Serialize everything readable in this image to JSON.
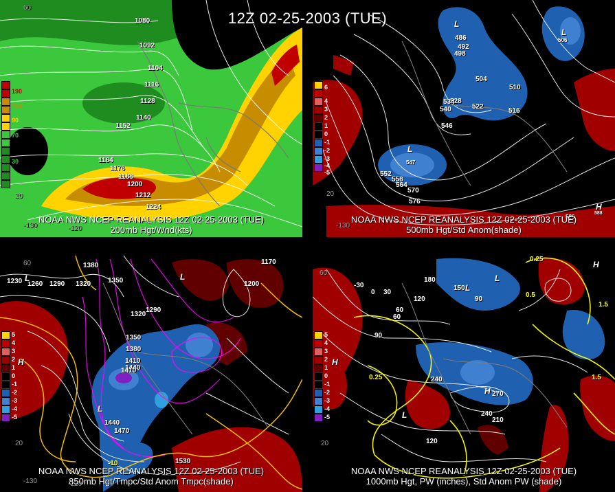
{
  "title": "12Z 02-25-2003 (TUE)",
  "panels": [
    {
      "id": "p1",
      "caption1": "NOAA NWS NCEP REANALYSIS 12Z 02-25-2003 (TUE)",
      "caption2": "200mb Hgt/Wnd(kts)",
      "legend": [
        {
          "label": "190",
          "color": "#c00000"
        },
        {
          "label": "110",
          "color": "#c88c00"
        },
        {
          "label": "90",
          "color": "#ffd200"
        },
        {
          "label": "70",
          "color": "#3cc83c"
        },
        {
          "label": "30",
          "color": "#1e8c1e"
        }
      ],
      "contour_labels": [
        "1080",
        "1092",
        "1104",
        "1116",
        "1128",
        "1140",
        "1152",
        "1164",
        "1176",
        "1188",
        "1200",
        "1212",
        "1224"
      ],
      "edge_labels": [
        "60",
        "-130",
        "-120",
        "20"
      ]
    },
    {
      "id": "p2",
      "caption1": "NOAA NWS NCEP REANALYSIS 12Z 02-25-2003 (TUE)",
      "caption2": "500mb Hgt/Std Anom(shade)",
      "legend": [
        {
          "label": "6",
          "color": "#c00000"
        },
        {
          "label": "4",
          "color": "#d03030"
        },
        {
          "label": "3",
          "color": "#e06060"
        },
        {
          "label": "2",
          "color": "#a00000"
        },
        {
          "label": "1",
          "color": "#600000"
        },
        {
          "label": "0",
          "color": "#000000"
        },
        {
          "label": "-1",
          "color": "#000000"
        },
        {
          "label": "-2",
          "color": "#2060b0"
        },
        {
          "label": "-3",
          "color": "#4080d0"
        },
        {
          "label": "-4",
          "color": "#30a0e0"
        },
        {
          "label": "-5",
          "color": "#8020c0"
        }
      ],
      "contour_labels": [
        "486",
        "492",
        "498",
        "504",
        "510",
        "516",
        "522",
        "528",
        "534",
        "540",
        "546",
        "552",
        "558",
        "564",
        "570",
        "576",
        "506",
        "547",
        "586",
        "588"
      ],
      "lows": [
        "L",
        "L",
        "L"
      ],
      "highs": [
        "H"
      ],
      "edge_labels": [
        "-130",
        "20"
      ]
    },
    {
      "id": "p3",
      "caption1": "NOAA NWS NCEP REANALYSIS 12Z 02-25-2003 (TUE)",
      "caption2": "850mb Hgt/Tmpc/Std Anom Tmpc(shade)",
      "legend": [
        {
          "label": "5",
          "color": "#ffd200"
        },
        {
          "label": "4",
          "color": "#c00000"
        },
        {
          "label": "3",
          "color": "#e06060"
        },
        {
          "label": "2",
          "color": "#a00000"
        },
        {
          "label": "1",
          "color": "#600000"
        },
        {
          "label": "0",
          "color": "#000000"
        },
        {
          "label": "-1",
          "color": "#000000"
        },
        {
          "label": "-2",
          "color": "#2060b0"
        },
        {
          "label": "-3",
          "color": "#4080d0"
        },
        {
          "label": "-4",
          "color": "#30a0e0"
        },
        {
          "label": "-5",
          "color": "#8020c0"
        }
      ],
      "contour_labels": [
        "1380",
        "1350",
        "1320",
        "1290",
        "1260",
        "1230",
        "1200",
        "1170",
        "1410",
        "1440",
        "1470",
        "1530",
        "1290",
        "1320",
        "1350",
        "1380",
        "1410",
        "1440"
      ],
      "temp_labels": [
        "-10"
      ],
      "lows": [
        "L",
        "L",
        "L"
      ],
      "highs": [
        "H"
      ],
      "edge_labels": [
        "60",
        "-130",
        "-120",
        "20"
      ]
    },
    {
      "id": "p4",
      "caption1": "NOAA NWS NCEP REANALYSIS 12Z 02-25-2003 (TUE)",
      "caption2": "1000mb Hgt, PW (inches), Std Anom PW (shade)",
      "legend": [
        {
          "label": "5",
          "color": "#ffd200"
        },
        {
          "label": "4",
          "color": "#c00000"
        },
        {
          "label": "3",
          "color": "#e06060"
        },
        {
          "label": "2",
          "color": "#a00000"
        },
        {
          "label": "1",
          "color": "#600000"
        },
        {
          "label": "0",
          "color": "#000000"
        },
        {
          "label": "-1",
          "color": "#000000"
        },
        {
          "label": "-2",
          "color": "#2060b0"
        },
        {
          "label": "-3",
          "color": "#4080d0"
        },
        {
          "label": "-4",
          "color": "#30a0e0"
        },
        {
          "label": "-5",
          "color": "#8020c0"
        }
      ],
      "contour_labels": [
        "180",
        "150",
        "120",
        "90",
        "60",
        "30",
        "0",
        "-30",
        "240",
        "270",
        "210",
        "240",
        "120",
        "90",
        "60"
      ],
      "pw_labels": [
        "0.25",
        "0.25",
        "0.5",
        "1.5",
        "1.5"
      ],
      "lows": [
        "L",
        "L",
        "L"
      ],
      "highs": [
        "H",
        "H",
        "H"
      ],
      "edge_labels": [
        "60",
        "20"
      ]
    }
  ]
}
